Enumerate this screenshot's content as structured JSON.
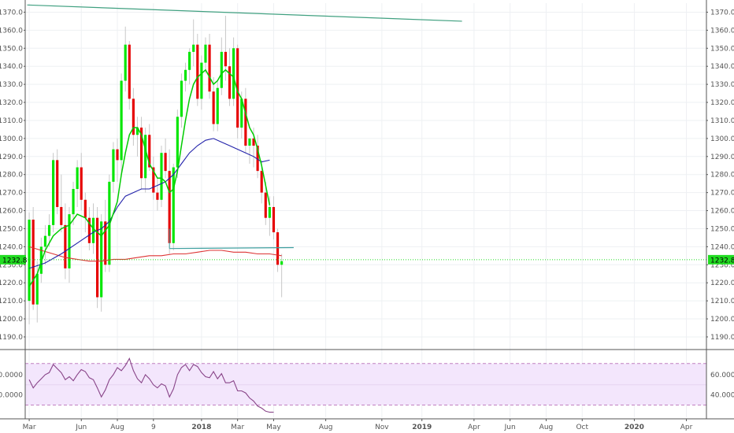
{
  "chart_data": {
    "type": "candlestick",
    "title": "",
    "xlabel": "",
    "ylabel": "",
    "colors": {
      "up": "#00e600",
      "down": "#e60000",
      "ema_fast": "#00cc00",
      "sma_slow": "#2222aa",
      "sma_long": "#dd3333",
      "trend_top": "#40a080",
      "trend_support": "#40a0a0",
      "rsi_line": "#884488",
      "rsi_band": "#f3e6fc",
      "rsi_bound": "#c080c0",
      "last_price": "#22dd22"
    },
    "x_axis": {
      "labels": [
        {
          "text": "Mar",
          "idx": 0,
          "bold": false
        },
        {
          "text": "Jun",
          "idx": 13,
          "bold": false
        },
        {
          "text": "Aug",
          "idx": 22,
          "bold": false
        },
        {
          "text": "9",
          "idx": 31,
          "bold": false
        },
        {
          "text": "2018",
          "idx": 43,
          "bold": true
        },
        {
          "text": "Mar",
          "idx": 52,
          "bold": false
        },
        {
          "text": "May",
          "idx": 61,
          "bold": false
        },
        {
          "text": "Aug",
          "idx": 74,
          "bold": false
        },
        {
          "text": "Nov",
          "idx": 88,
          "bold": false
        },
        {
          "text": "2019",
          "idx": 98,
          "bold": true
        },
        {
          "text": "Apr",
          "idx": 111,
          "bold": false
        },
        {
          "text": "Jun",
          "idx": 120,
          "bold": false
        },
        {
          "text": "Aug",
          "idx": 129,
          "bold": false
        },
        {
          "text": "Oct",
          "idx": 138,
          "bold": false
        },
        {
          "text": "2020",
          "idx": 151,
          "bold": true
        },
        {
          "text": "Apr",
          "idx": 164,
          "bold": false
        }
      ],
      "range": [
        -1,
        169
      ]
    },
    "y_axis": {
      "range": [
        1183,
        1375
      ],
      "ticks": [
        "1190.0",
        "1200.0",
        "1210.0",
        "1220.0",
        "1230.0",
        "1240.0",
        "1250.0",
        "1260.0",
        "1270.0",
        "1280.0",
        "1290.0",
        "1300.0",
        "1310.0",
        "1320.0",
        "1330.0",
        "1340.0",
        "1350.0",
        "1360.0",
        "1370.0"
      ]
    },
    "last_price": {
      "value": 1232.8,
      "label": "1232.8"
    },
    "candles": [
      [
        1210,
        1259,
        1197,
        1255
      ],
      [
        1255,
        1262,
        1205,
        1208
      ],
      [
        1208,
        1232,
        1198,
        1225
      ],
      [
        1225,
        1245,
        1220,
        1240
      ],
      [
        1240,
        1252,
        1230,
        1246
      ],
      [
        1246,
        1258,
        1240,
        1252
      ],
      [
        1252,
        1292,
        1248,
        1288
      ],
      [
        1288,
        1294,
        1258,
        1262
      ],
      [
        1262,
        1280,
        1248,
        1252
      ],
      [
        1252,
        1264,
        1222,
        1228
      ],
      [
        1228,
        1262,
        1220,
        1258
      ],
      [
        1258,
        1276,
        1252,
        1272
      ],
      [
        1272,
        1288,
        1262,
        1284
      ],
      [
        1284,
        1292,
        1260,
        1266
      ],
      [
        1266,
        1270,
        1248,
        1256
      ],
      [
        1256,
        1262,
        1238,
        1242
      ],
      [
        1242,
        1264,
        1236,
        1256
      ],
      [
        1256,
        1262,
        1206,
        1212
      ],
      [
        1212,
        1258,
        1204,
        1254
      ],
      [
        1254,
        1266,
        1226,
        1230
      ],
      [
        1230,
        1280,
        1226,
        1276
      ],
      [
        1276,
        1298,
        1270,
        1294
      ],
      [
        1294,
        1300,
        1276,
        1288
      ],
      [
        1288,
        1336,
        1280,
        1332
      ],
      [
        1332,
        1362,
        1326,
        1352
      ],
      [
        1352,
        1354,
        1316,
        1322
      ],
      [
        1322,
        1328,
        1296,
        1302
      ],
      [
        1302,
        1312,
        1290,
        1306
      ],
      [
        1306,
        1312,
        1272,
        1278
      ],
      [
        1278,
        1306,
        1270,
        1302
      ],
      [
        1302,
        1308,
        1282,
        1284
      ],
      [
        1284,
        1290,
        1266,
        1270
      ],
      [
        1270,
        1278,
        1260,
        1266
      ],
      [
        1266,
        1296,
        1262,
        1292
      ],
      [
        1292,
        1300,
        1278,
        1282
      ],
      [
        1282,
        1294,
        1236,
        1242
      ],
      [
        1242,
        1286,
        1238,
        1284
      ],
      [
        1284,
        1316,
        1278,
        1312
      ],
      [
        1312,
        1336,
        1306,
        1332
      ],
      [
        1332,
        1342,
        1326,
        1338
      ],
      [
        1338,
        1350,
        1330,
        1348
      ],
      [
        1348,
        1366,
        1340,
        1352
      ],
      [
        1352,
        1358,
        1318,
        1322
      ],
      [
        1322,
        1346,
        1316,
        1342
      ],
      [
        1342,
        1356,
        1336,
        1352
      ],
      [
        1352,
        1358,
        1322,
        1326
      ],
      [
        1326,
        1334,
        1304,
        1308
      ],
      [
        1308,
        1332,
        1304,
        1328
      ],
      [
        1328,
        1356,
        1324,
        1348
      ],
      [
        1348,
        1368,
        1332,
        1340
      ],
      [
        1340,
        1350,
        1318,
        1322
      ],
      [
        1322,
        1356,
        1318,
        1350
      ],
      [
        1350,
        1352,
        1300,
        1306
      ],
      [
        1306,
        1326,
        1300,
        1322
      ],
      [
        1322,
        1328,
        1292,
        1296
      ],
      [
        1296,
        1300,
        1286,
        1300
      ],
      [
        1300,
        1306,
        1284,
        1296
      ],
      [
        1296,
        1302,
        1278,
        1282
      ],
      [
        1282,
        1288,
        1264,
        1270
      ],
      [
        1270,
        1276,
        1252,
        1256
      ],
      [
        1256,
        1268,
        1246,
        1262
      ],
      [
        1262,
        1268,
        1244,
        1248
      ],
      [
        1248,
        1250,
        1226,
        1230
      ],
      [
        1230,
        1236,
        1212,
        1232
      ]
    ],
    "ema_fast": [
      [
        0,
        1218
      ],
      [
        2,
        1225
      ],
      [
        4,
        1238
      ],
      [
        6,
        1246
      ],
      [
        8,
        1250
      ],
      [
        10,
        1252
      ],
      [
        12,
        1258
      ],
      [
        14,
        1256
      ],
      [
        16,
        1250
      ],
      [
        18,
        1246
      ],
      [
        20,
        1252
      ],
      [
        22,
        1265
      ],
      [
        23,
        1280
      ],
      [
        24,
        1292
      ],
      [
        25,
        1302
      ],
      [
        26,
        1306
      ],
      [
        27,
        1306
      ],
      [
        28,
        1302
      ],
      [
        29,
        1294
      ],
      [
        30,
        1286
      ],
      [
        31,
        1282
      ],
      [
        32,
        1278
      ],
      [
        33,
        1278
      ],
      [
        34,
        1276
      ],
      [
        35,
        1270
      ],
      [
        36,
        1272
      ],
      [
        37,
        1282
      ],
      [
        38,
        1296
      ],
      [
        39,
        1310
      ],
      [
        40,
        1322
      ],
      [
        41,
        1330
      ],
      [
        42,
        1334
      ],
      [
        43,
        1336
      ],
      [
        44,
        1338
      ],
      [
        45,
        1334
      ],
      [
        46,
        1330
      ],
      [
        47,
        1332
      ],
      [
        48,
        1336
      ],
      [
        49,
        1338
      ],
      [
        50,
        1336
      ],
      [
        51,
        1334
      ],
      [
        52,
        1326
      ],
      [
        53,
        1322
      ],
      [
        54,
        1314
      ],
      [
        55,
        1306
      ],
      [
        56,
        1302
      ],
      [
        57,
        1294
      ],
      [
        58,
        1285
      ],
      [
        59,
        1274
      ],
      [
        60,
        1263
      ]
    ],
    "sma_slow": [
      [
        0,
        1228
      ],
      [
        4,
        1231
      ],
      [
        8,
        1236
      ],
      [
        12,
        1242
      ],
      [
        16,
        1248
      ],
      [
        18,
        1250
      ],
      [
        20,
        1254
      ],
      [
        22,
        1262
      ],
      [
        24,
        1268
      ],
      [
        26,
        1270
      ],
      [
        28,
        1272
      ],
      [
        30,
        1272
      ],
      [
        32,
        1274
      ],
      [
        34,
        1276
      ],
      [
        36,
        1280
      ],
      [
        38,
        1286
      ],
      [
        40,
        1292
      ],
      [
        42,
        1296
      ],
      [
        44,
        1299
      ],
      [
        46,
        1300
      ],
      [
        48,
        1298
      ],
      [
        50,
        1296
      ],
      [
        52,
        1294
      ],
      [
        54,
        1292
      ],
      [
        56,
        1290
      ],
      [
        58,
        1287
      ],
      [
        60,
        1288
      ]
    ],
    "sma_long": [
      [
        0,
        1240
      ],
      [
        3,
        1238
      ],
      [
        6,
        1236
      ],
      [
        9,
        1234
      ],
      [
        12,
        1233
      ],
      [
        15,
        1232
      ],
      [
        18,
        1232
      ],
      [
        21,
        1233
      ],
      [
        24,
        1233
      ],
      [
        27,
        1234
      ],
      [
        30,
        1235
      ],
      [
        33,
        1235
      ],
      [
        36,
        1236
      ],
      [
        39,
        1236
      ],
      [
        42,
        1237
      ],
      [
        45,
        1238
      ],
      [
        48,
        1238
      ],
      [
        51,
        1237
      ],
      [
        54,
        1237
      ],
      [
        57,
        1236
      ],
      [
        60,
        1236
      ],
      [
        63,
        1235
      ]
    ],
    "trend_top": [
      [
        -0.5,
        1374
      ],
      [
        108,
        1365
      ]
    ],
    "trend_support": [
      [
        35,
        1239
      ],
      [
        66,
        1239.5
      ]
    ],
    "rsi": {
      "range": [
        18,
        84
      ],
      "ticks": [
        "40.0000",
        "60.0000"
      ],
      "upper": 71,
      "lower": 30,
      "values": [
        [
          0,
          55
        ],
        [
          1,
          47
        ],
        [
          2,
          52
        ],
        [
          3,
          56
        ],
        [
          4,
          60
        ],
        [
          5,
          62
        ],
        [
          6,
          70
        ],
        [
          7,
          66
        ],
        [
          8,
          62
        ],
        [
          9,
          55
        ],
        [
          10,
          58
        ],
        [
          11,
          54
        ],
        [
          12,
          60
        ],
        [
          13,
          65
        ],
        [
          14,
          63
        ],
        [
          15,
          57
        ],
        [
          16,
          55
        ],
        [
          17,
          47
        ],
        [
          18,
          38
        ],
        [
          19,
          45
        ],
        [
          20,
          55
        ],
        [
          21,
          60
        ],
        [
          22,
          67
        ],
        [
          23,
          64
        ],
        [
          24,
          69
        ],
        [
          25,
          76
        ],
        [
          26,
          64
        ],
        [
          27,
          56
        ],
        [
          28,
          52
        ],
        [
          29,
          60
        ],
        [
          30,
          56
        ],
        [
          31,
          50
        ],
        [
          32,
          47
        ],
        [
          33,
          51
        ],
        [
          34,
          49
        ],
        [
          35,
          38
        ],
        [
          36,
          46
        ],
        [
          37,
          60
        ],
        [
          38,
          67
        ],
        [
          39,
          70
        ],
        [
          40,
          64
        ],
        [
          41,
          70
        ],
        [
          42,
          68
        ],
        [
          43,
          62
        ],
        [
          44,
          58
        ],
        [
          45,
          57
        ],
        [
          46,
          63
        ],
        [
          47,
          56
        ],
        [
          48,
          61
        ],
        [
          49,
          52
        ],
        [
          50,
          52
        ],
        [
          51,
          54
        ],
        [
          52,
          44
        ],
        [
          53,
          44
        ],
        [
          54,
          42
        ],
        [
          55,
          37
        ],
        [
          56,
          34
        ],
        [
          57,
          29
        ],
        [
          58,
          27
        ],
        [
          59,
          24
        ],
        [
          60,
          23
        ],
        [
          61,
          23
        ]
      ]
    }
  }
}
